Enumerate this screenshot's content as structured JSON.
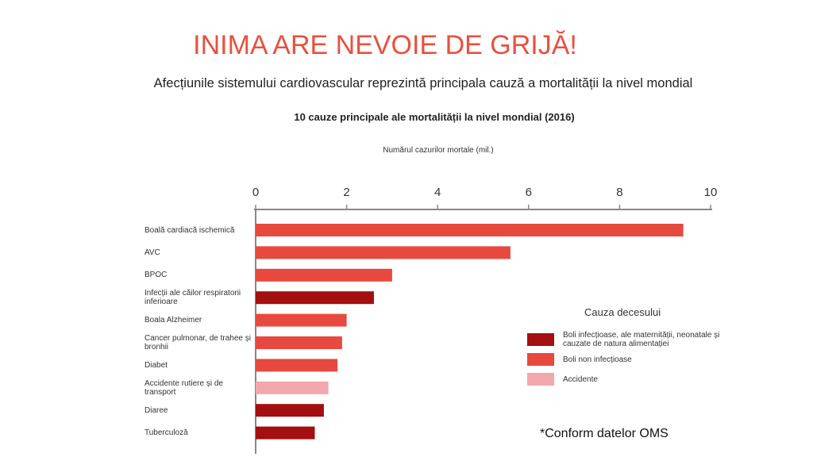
{
  "header": {
    "title": "INIMA ARE NEVOIE DE GRIJĂ!",
    "subtitle": "Afecțiunile sistemului cardiovascular reprezintă principala cauză a mortalității la nivel mondial"
  },
  "chart_data": {
    "type": "bar",
    "orientation": "horizontal",
    "title": "10 cauze principale ale mortalității la nivel mondial (2016)",
    "x_label": "Numărul cazurilor mortale (mil.)",
    "legend_title": "Cauza decesului",
    "legend_position": "right",
    "categories": [
      "Boală cardiacă ischemică",
      "AVC",
      "BPOC",
      "Infecții ale căilor respiratorii inferioare",
      "Boala Alzheimer",
      "Cancer pulmonar, de trahee și bronhii",
      "Diabet",
      "Accidente rutiere și de transport",
      "Diaree",
      "Tuberculoză"
    ],
    "series": [
      {
        "name": "Boli infecțioase, ale maternității, neonatale și cauzate de natura alimentației",
        "color": "#a3100f",
        "values": [
          null,
          null,
          null,
          2.6,
          null,
          null,
          null,
          null,
          1.5,
          1.3
        ]
      },
      {
        "name": "Boli non infecțioase",
        "color": "#e8493f",
        "values": [
          9.4,
          5.6,
          3.0,
          null,
          2.0,
          1.9,
          1.8,
          null,
          null,
          null
        ]
      },
      {
        "name": "Accidente",
        "color": "#f2a7ac",
        "values": [
          null,
          null,
          null,
          null,
          null,
          null,
          null,
          1.6,
          null,
          null
        ]
      }
    ],
    "xlim": [
      0,
      10
    ],
    "xticks": [
      0,
      2,
      4,
      6,
      8,
      10
    ]
  },
  "footer": {
    "note": "*Conform datelor OMS"
  }
}
